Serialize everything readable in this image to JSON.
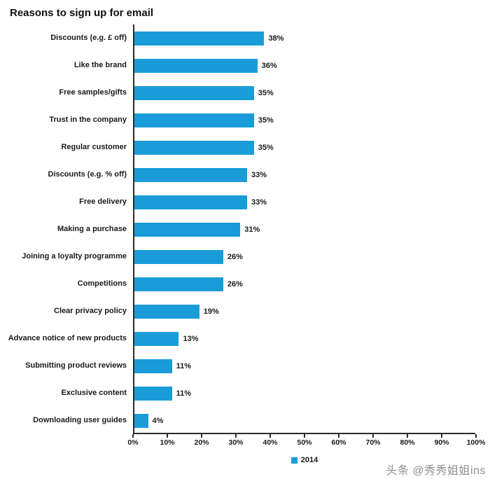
{
  "title": "Reasons to sign up for email",
  "watermark": "头条 @秀秀姐姐ins",
  "chart_data": {
    "type": "bar",
    "orientation": "horizontal",
    "title": "Reasons to sign up for email",
    "categories": [
      "Discounts (e.g. £ off)",
      "Like the brand",
      "Free samples/gifts",
      "Trust in the company",
      "Regular customer",
      "Discounts (e.g. % off)",
      "Free delivery",
      "Making a purchase",
      "Joining a loyalty programme",
      "Competitions",
      "Clear privacy policy",
      "Advance notice of new products",
      "Submitting product reviews",
      "Exclusive content",
      "Downloading user guides"
    ],
    "values": [
      38,
      36,
      35,
      35,
      35,
      33,
      33,
      31,
      26,
      26,
      19,
      13,
      11,
      11,
      4
    ],
    "value_labels": [
      "38%",
      "36%",
      "35%",
      "35%",
      "35%",
      "33%",
      "33%",
      "31%",
      "26%",
      "26%",
      "19%",
      "13%",
      "11%",
      "11%",
      "4%"
    ],
    "x_ticks": [
      "0%",
      "10%",
      "20%",
      "30%",
      "40%",
      "50%",
      "60%",
      "70%",
      "80%",
      "90%",
      "100%"
    ],
    "xlim": [
      0,
      100
    ],
    "xlabel": "",
    "ylabel": "",
    "grid": false,
    "bar_color": "#1a9cd8",
    "legend": [
      "2014"
    ],
    "legend_position": "bottom-center"
  }
}
